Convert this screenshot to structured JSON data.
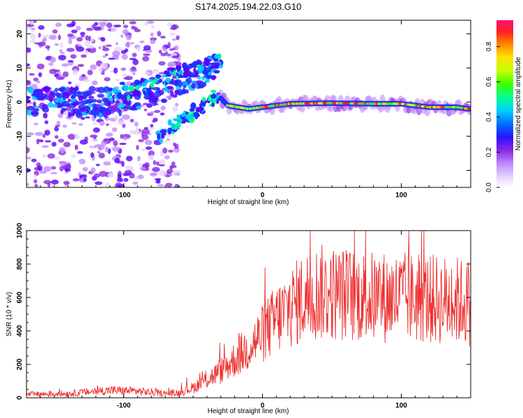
{
  "title": "S174.2025.194.22.03.G10",
  "chart_data": [
    {
      "type": "heatmap",
      "xlabel": "Height of straight line (km)",
      "ylabel": "Frequency (Hz)",
      "xlim": [
        -170,
        150
      ],
      "ylim": [
        -25,
        24
      ],
      "xticks": [
        -100,
        0,
        100
      ],
      "yticks": [
        -20,
        -10,
        0,
        10,
        20
      ],
      "colorbar": {
        "label": "Normalized spectral amplitude",
        "range": [
          0.0,
          0.95
        ],
        "ticks": [
          0.0,
          0.2,
          0.4,
          0.6,
          0.8
        ],
        "colors": [
          "#e6d6ff",
          "#c18bff",
          "#8a2be2",
          "#5a00ff",
          "#2030ff",
          "#00c8ff",
          "#00ff90",
          "#40ff00",
          "#c8ff00",
          "#ffe000",
          "#ff8000",
          "#ff2020",
          "#ff1060"
        ]
      },
      "ridge": {
        "description_points_x": [
          -70,
          -55,
          -45,
          -38,
          -32,
          -25,
          -10,
          0,
          20,
          50,
          80,
          100,
          120,
          140,
          148
        ],
        "description_points_y": [
          -11,
          -6,
          -2,
          1,
          2,
          -1,
          -2,
          -1.5,
          -0.5,
          -0.3,
          -0.5,
          -0.5,
          -1.5,
          -1.5,
          -2
        ]
      }
    },
    {
      "type": "line",
      "xlabel": "Height of straight line (km)",
      "ylabel": "SNR (10 * v/v)",
      "xlim": [
        -170,
        150
      ],
      "ylim": [
        0,
        1000
      ],
      "xticks": [
        -100,
        0,
        100
      ],
      "yticks": [
        0,
        200,
        400,
        600,
        800,
        1000
      ],
      "color": "#ee3030",
      "envelope_x": [
        -170,
        -140,
        -110,
        -90,
        -70,
        -60,
        -50,
        -40,
        -30,
        -20,
        -10,
        0,
        10,
        20,
        30,
        40,
        60,
        80,
        100,
        120,
        140,
        150
      ],
      "envelope_mean": [
        20,
        25,
        45,
        40,
        25,
        30,
        60,
        110,
        160,
        230,
        300,
        380,
        470,
        540,
        600,
        630,
        620,
        600,
        600,
        590,
        580,
        570
      ]
    }
  ]
}
